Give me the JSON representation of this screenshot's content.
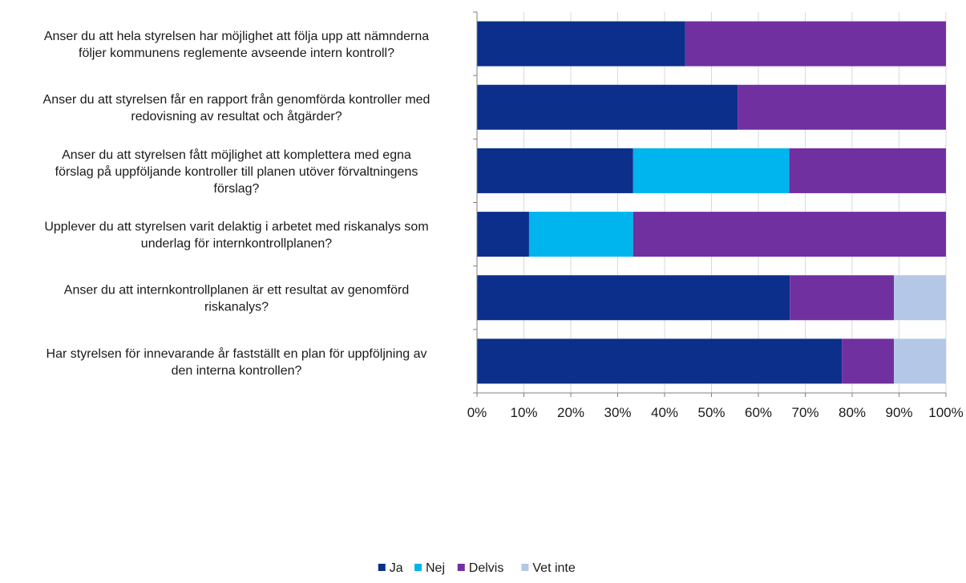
{
  "chart_data": {
    "type": "bar",
    "orientation": "horizontal",
    "stacked": "percent",
    "categories": [
      [
        "Anser du att hela styrelsen har möjlighet att följa upp att nämnderna",
        "följer kommunens reglemente avseende intern kontroll?"
      ],
      [
        "Anser du att styrelsen får en rapport från genomförda kontroller med",
        "redovisning av resultat och åtgärder?"
      ],
      [
        "Anser du att styrelsen fått möjlighet att komplettera med egna",
        "förslag på uppföljande kontroller till planen utöver förvaltningens",
        "förslag?"
      ],
      [
        "Upplever du att styrelsen varit delaktig i arbetet med riskanalys som",
        "underlag för internkontrollplanen?"
      ],
      [
        "Anser du att internkontrollplanen är ett resultat av genomförd",
        "riskanalys?"
      ],
      [
        "Har styrelsen för innevarande år fastställt en plan för uppföljning av",
        "den interna kontrollen?"
      ]
    ],
    "series": [
      {
        "name": "Ja",
        "color": "#0b2f8a",
        "values": [
          44.4,
          55.6,
          33.3,
          11.1,
          66.7,
          77.8
        ]
      },
      {
        "name": "Nej",
        "color": "#00b4ee",
        "values": [
          0,
          0,
          33.3,
          22.2,
          0,
          0
        ]
      },
      {
        "name": "Delvis",
        "color": "#7030a0",
        "values": [
          55.6,
          44.4,
          33.4,
          66.7,
          22.2,
          11.1
        ]
      },
      {
        "name": "Vet inte",
        "color": "#b4c7e7",
        "values": [
          0,
          0,
          0,
          0,
          11.1,
          11.1
        ]
      }
    ],
    "xlim": [
      0,
      100
    ],
    "xticks": [
      "0%",
      "10%",
      "20%",
      "30%",
      "40%",
      "50%",
      "60%",
      "70%",
      "80%",
      "90%",
      "100%"
    ],
    "grid": true,
    "legend_position": "bottom"
  }
}
